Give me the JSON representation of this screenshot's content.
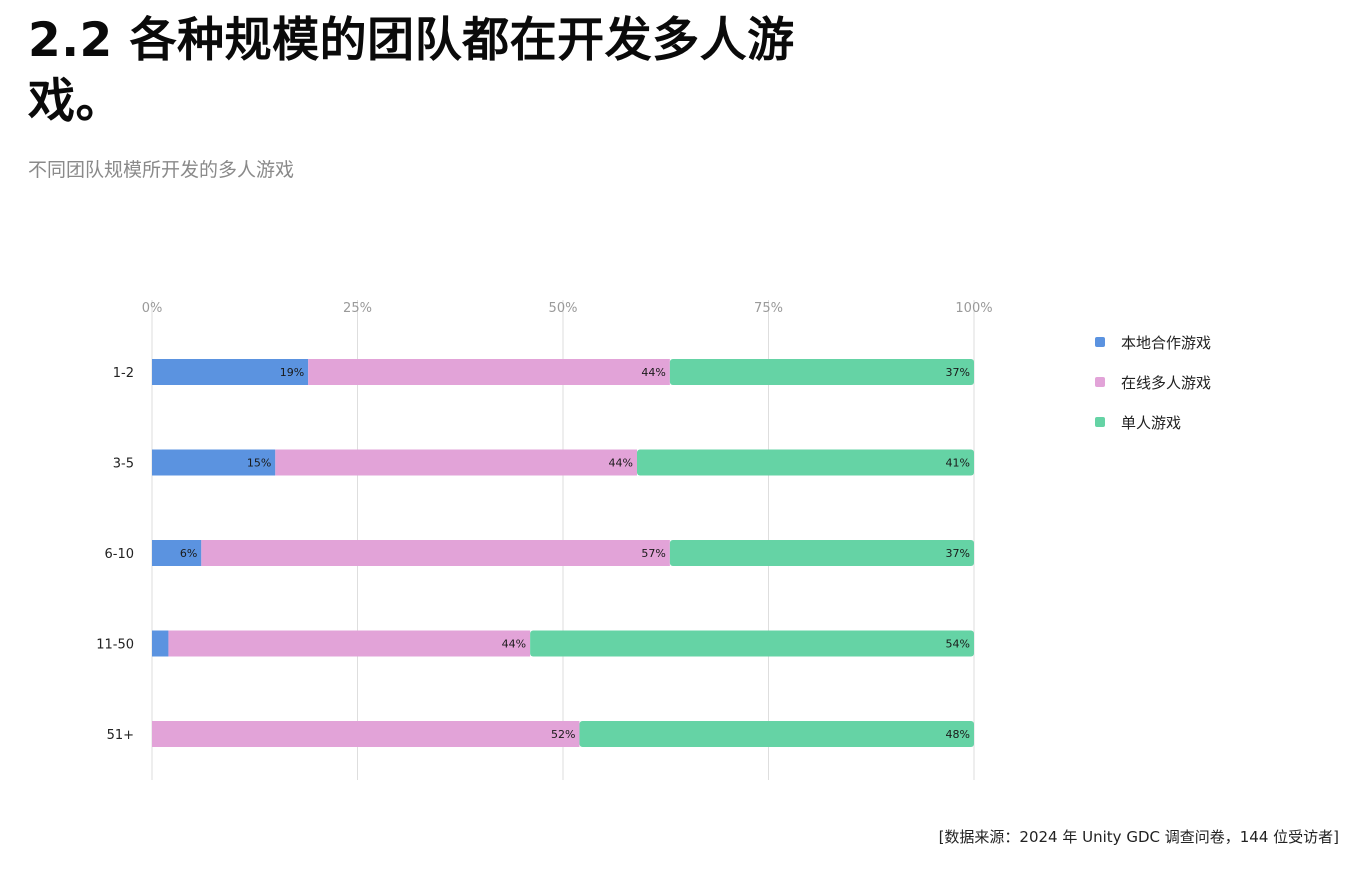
{
  "title": "2.2 各种规模的团队都在开发多人游戏。",
  "subtitle": "不同团队规模所开发的多人游戏",
  "source": "[数据来源：2024 年 Unity GDC 调查问卷，144 位受访者]",
  "chart_data": {
    "type": "bar",
    "orientation": "horizontal",
    "stacked": true,
    "normalized": true,
    "categories": [
      "1-2",
      "3-5",
      "6-10",
      "11-50",
      "51+"
    ],
    "x_ticks": [
      "0%",
      "25%",
      "50%",
      "75%",
      "100%"
    ],
    "xlim": [
      0,
      100
    ],
    "grid": true,
    "legend_position": "right",
    "series": [
      {
        "name": "本地合作游戏",
        "color": "#5b93e0",
        "values": [
          19,
          15,
          6,
          2,
          0
        ],
        "labels": [
          "19%",
          "15%",
          "6%",
          "2%",
          "0%"
        ]
      },
      {
        "name": "在线多人游戏",
        "color": "#e2a3d8",
        "values": [
          44,
          44,
          57,
          44,
          52
        ],
        "labels": [
          "44%",
          "44%",
          "57%",
          "44%",
          "52%"
        ]
      },
      {
        "name": "单人游戏",
        "color": "#65d3a5",
        "values": [
          37,
          41,
          37,
          54,
          48
        ],
        "labels": [
          "37%",
          "41%",
          "37%",
          "54%",
          "48%"
        ]
      }
    ]
  }
}
